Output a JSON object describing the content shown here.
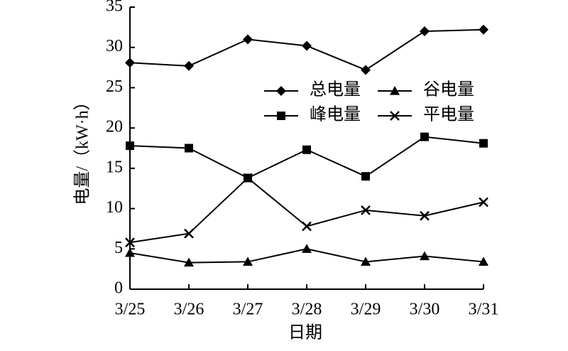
{
  "chart_data": {
    "type": "line",
    "categories": [
      "3/25",
      "3/26",
      "3/27",
      "3/28",
      "3/29",
      "3/30",
      "3/31"
    ],
    "x_label": "日期",
    "y_label": "电量/（kW·h）",
    "ylim": [
      0,
      35
    ],
    "yticks": [
      0,
      5,
      10,
      15,
      20,
      25,
      30,
      35
    ],
    "series": [
      {
        "name": "总电量",
        "color": "#000000",
        "marker": "diamond",
        "values": [
          28.1,
          27.7,
          31.0,
          30.2,
          27.2,
          32.0,
          32.2
        ]
      },
      {
        "name": "谷电量",
        "color": "#000000",
        "marker": "triangle",
        "values": [
          4.5,
          3.3,
          3.4,
          5.0,
          3.4,
          4.1,
          3.4
        ]
      },
      {
        "name": "峰电量",
        "color": "#000000",
        "marker": "square",
        "values": [
          17.8,
          17.5,
          13.8,
          17.3,
          14.0,
          18.9,
          18.1
        ]
      },
      {
        "name": "平电量",
        "color": "#000000",
        "marker": "cross",
        "values": [
          5.8,
          6.9,
          13.8,
          7.8,
          9.8,
          9.1,
          10.8
        ]
      }
    ],
    "legend_columns": 2
  }
}
